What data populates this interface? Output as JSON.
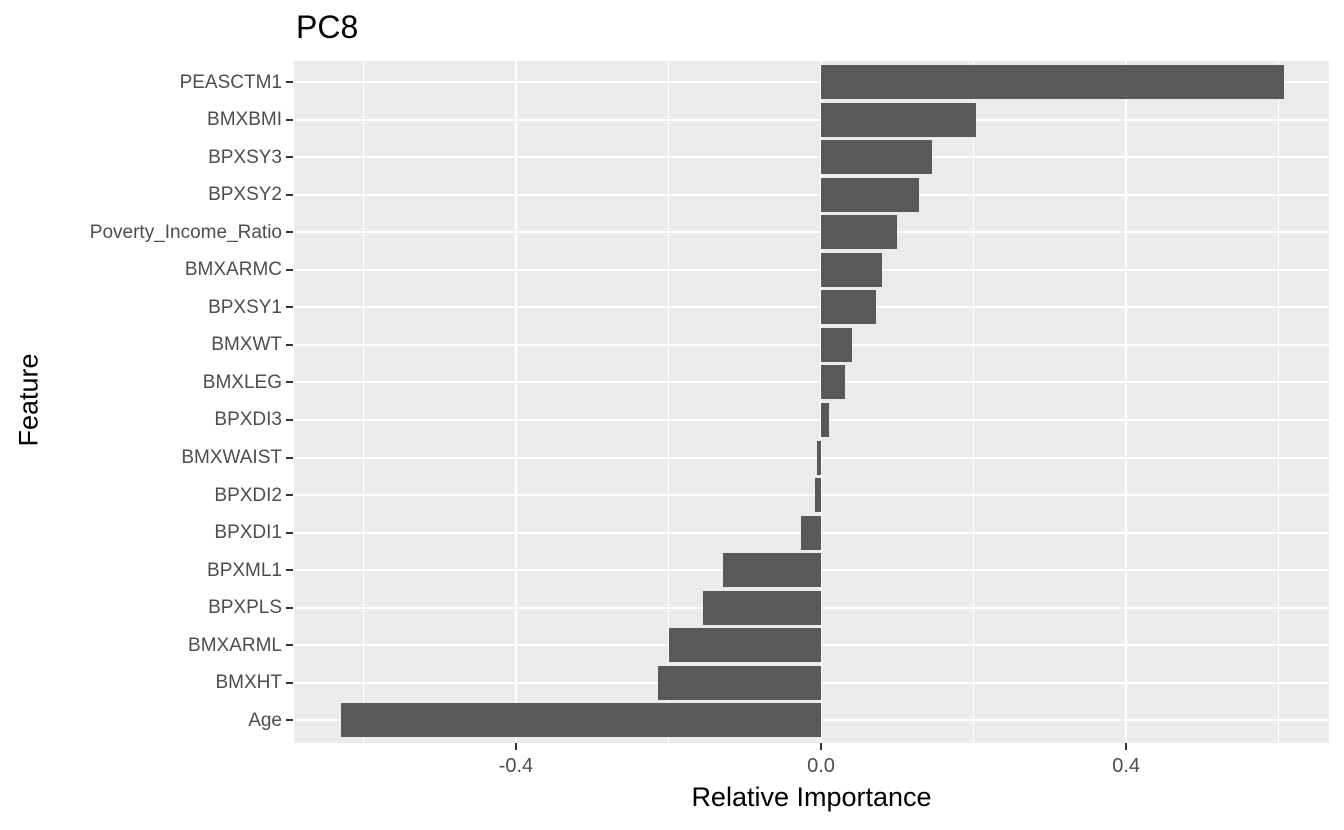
{
  "chart_data": {
    "type": "bar",
    "orientation": "horizontal",
    "title": "PC8",
    "xlabel": "Relative Importance",
    "ylabel": "Feature",
    "categories": [
      "PEASCTM1",
      "BMXBMI",
      "BPXSY3",
      "BPXSY2",
      "Poverty_Income_Ratio",
      "BMXARMC",
      "BPXSY1",
      "BMXWT",
      "BMXLEG",
      "BPXDI3",
      "BMXWAIST",
      "BPXDI2",
      "BPXDI1",
      "BPXML1",
      "BPXPLS",
      "BMXARML",
      "BMXHT",
      "Age"
    ],
    "values": [
      0.607,
      0.203,
      0.146,
      0.128,
      0.1,
      0.08,
      0.072,
      0.04,
      0.032,
      0.01,
      -0.005,
      -0.008,
      -0.026,
      -0.128,
      -0.155,
      -0.199,
      -0.214,
      -0.629
    ],
    "x_ticks": [
      -0.4,
      0.0,
      0.4
    ],
    "x_tick_labels": [
      "-0.4",
      "0.0",
      "0.4"
    ],
    "x_minor_ticks": [
      -0.6,
      -0.2,
      0.2,
      0.6
    ],
    "xlim": [
      -0.691,
      0.666
    ],
    "grid": true,
    "legend_position": "none",
    "colors": {
      "bar_fill": "#595959",
      "panel_background": "#EBEBEB",
      "gridline": "#FFFFFF",
      "axis_text": "#4D4D4D",
      "axis_title": "#000000",
      "tick_mark": "#333333"
    }
  }
}
